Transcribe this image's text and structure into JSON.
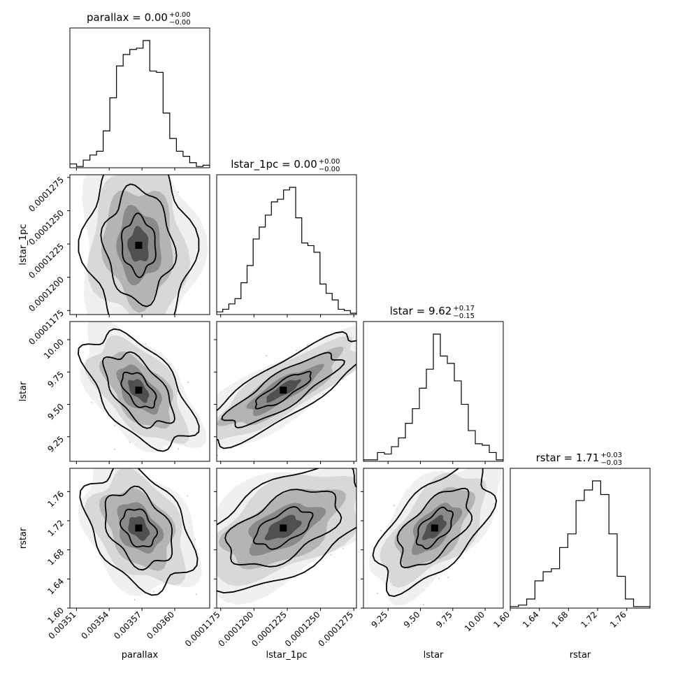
{
  "chart_data": {
    "type": "corner",
    "parameters": [
      "parallax",
      "lstar_1pc",
      "lstar",
      "rstar"
    ],
    "titles": [
      {
        "param": "parallax",
        "text": "parallax = 0.00",
        "plus": "+0.00",
        "minus": "−0.00"
      },
      {
        "param": "lstar_1pc",
        "text": "lstar_1pc = 0.00",
        "plus": "+0.00",
        "minus": "−0.00"
      },
      {
        "param": "lstar",
        "text": "lstar = 9.62",
        "plus": "+0.17",
        "minus": "−0.15"
      },
      {
        "param": "rstar",
        "text": "rstar = 1.71",
        "plus": "+0.03",
        "minus": "−0.03"
      }
    ],
    "xlabels": [
      "parallax",
      "lstar_1pc",
      "lstar",
      "rstar"
    ],
    "ylabels": [
      "",
      "lstar_1pc",
      "lstar",
      "rstar"
    ],
    "ranges": [
      [
        0.003504,
        0.003632
      ],
      [
        0.0001172,
        0.0001277
      ],
      [
        9.06,
        10.14
      ],
      [
        1.6,
        1.792
      ]
    ],
    "ticks": [
      {
        "values": [
          0.00351,
          0.00354,
          0.00357,
          0.0036
        ],
        "labels": [
          "0.00351",
          "0.00354",
          "0.00357",
          "0.00360"
        ]
      },
      {
        "values": [
          0.0001175,
          0.00012,
          0.0001225,
          0.000125,
          0.0001275
        ],
        "labels": [
          "0.0001175",
          "0.0001200",
          "0.0001225",
          "0.0001250",
          "0.0001275"
        ]
      },
      {
        "values": [
          9.25,
          9.5,
          9.75,
          10.0
        ],
        "labels": [
          "9.25",
          "9.50",
          "9.75",
          "10.00"
        ]
      },
      {
        "values": [
          1.6,
          1.64,
          1.68,
          1.72,
          1.76
        ],
        "labels": [
          "1.60",
          "1.64",
          "1.68",
          "1.72",
          "1.76"
        ]
      }
    ],
    "histograms": [
      {
        "param": "parallax",
        "counts": [
          3,
          1,
          6,
          10,
          13,
          29,
          55,
          80,
          89,
          93,
          94,
          100,
          76,
          75,
          43,
          23,
          13,
          9,
          4,
          1,
          2
        ]
      },
      {
        "param": "lstar_1pc",
        "counts": [
          2,
          4,
          8,
          12,
          24,
          37,
          57,
          66,
          75,
          85,
          87,
          94,
          96,
          73,
          54,
          52,
          47,
          23,
          16,
          11,
          4,
          3,
          1
        ]
      },
      {
        "param": "lstar",
        "counts": [
          1,
          1,
          6,
          5,
          10,
          16,
          26,
          36,
          50,
          63,
          87,
          72,
          67,
          55,
          39,
          21,
          12,
          11,
          6,
          1
        ]
      },
      {
        "param": "rstar",
        "counts": [
          1,
          2,
          6,
          18,
          24,
          26,
          40,
          49,
          71,
          78,
          84,
          75,
          49,
          21,
          6,
          1,
          1
        ]
      }
    ],
    "pairs": [
      {
        "x": "parallax",
        "y": "lstar_1pc",
        "center": [
          0.003567,
          0.0001224
        ],
        "sx": 1.75e-05,
        "sy": 2.4e-06,
        "rho": -0.05
      },
      {
        "x": "parallax",
        "y": "lstar",
        "center": [
          0.003567,
          9.61
        ],
        "sx": 1.75e-05,
        "sy": 0.16,
        "rho": -0.55
      },
      {
        "x": "lstar_1pc",
        "y": "lstar",
        "center": [
          0.0001222,
          9.61
        ],
        "sx": 2.4e-06,
        "sy": 0.16,
        "rho": 0.85
      },
      {
        "x": "parallax",
        "y": "rstar",
        "center": [
          0.003567,
          1.71
        ],
        "sx": 1.75e-05,
        "sy": 0.03,
        "rho": -0.35
      },
      {
        "x": "lstar_1pc",
        "y": "rstar",
        "center": [
          0.0001222,
          1.71
        ],
        "sx": 2.4e-06,
        "sy": 0.03,
        "rho": 0.55
      },
      {
        "x": "lstar",
        "y": "rstar",
        "center": [
          9.61,
          1.71
        ],
        "sx": 0.16,
        "sy": 0.03,
        "rho": 0.6
      }
    ]
  }
}
